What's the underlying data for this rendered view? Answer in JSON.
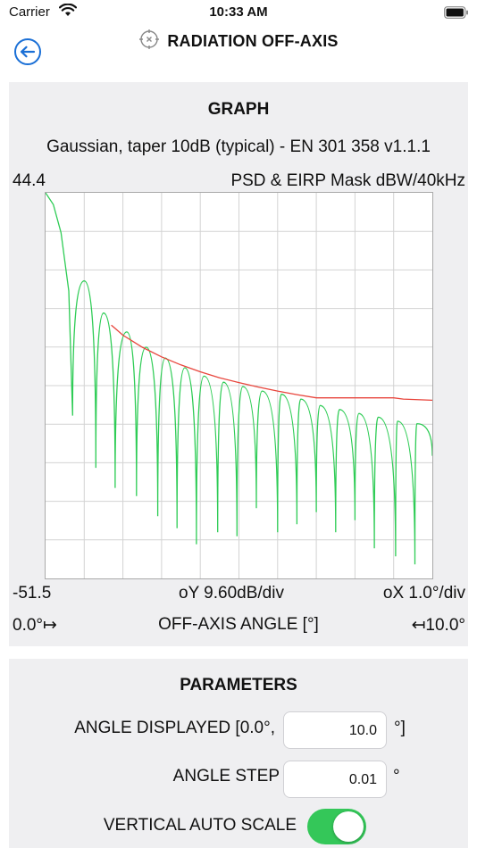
{
  "status_bar": {
    "carrier": "Carrier",
    "time": "10:33 AM"
  },
  "nav": {
    "title": "RADIATION OFF-AXIS",
    "back_icon": "arrow-left-icon",
    "title_icon": "crosshair-icon"
  },
  "graph": {
    "heading": "GRAPH",
    "subtitle": "Gaussian, taper 10dB (typical) - EN 301 358 v1.1.1",
    "y_max": "44.4",
    "y_min": "-51.5",
    "mask_label": "PSD & EIRP Mask dBW/40kHz",
    "oy_label": "oY 9.60dB/div",
    "ox_label": "oX 1.0°/div",
    "x_start": "0.0°↦",
    "x_axis_title": "OFF-AXIS ANGLE [°]",
    "x_end": "↤10.0°"
  },
  "chart_data": {
    "type": "line",
    "title": "Gaussian, taper 10dB (typical) - EN 301 358 v1.1.1",
    "xlabel": "OFF-AXIS ANGLE [°]",
    "ylabel": "PSD & EIRP Mask dBW/40kHz",
    "xlim": [
      0,
      10
    ],
    "ylim": [
      -51.5,
      44.4
    ],
    "grid": true,
    "colors": {
      "pattern": "#2ecc55",
      "mask": "#e8453c"
    },
    "series": [
      {
        "x": [
          1.7,
          2.0,
          2.5,
          3.0,
          3.5,
          4.0,
          4.5,
          5.0,
          5.5,
          6.0,
          6.5,
          7.0,
          8.0,
          9.0,
          9.25,
          10.0
        ],
        "values": [
          11.5,
          9.0,
          6.0,
          3.6,
          1.6,
          -0.1,
          -1.6,
          -2.8,
          -3.9,
          -4.9,
          -5.8,
          -6.6,
          -6.6,
          -6.6,
          -6.9,
          -7.2
        ]
      },
      {
        "main_lobe": {
          "x": [
            0.0,
            0.2,
            0.4,
            0.6,
            0.7
          ],
          "values": [
            44.4,
            41.5,
            34.5,
            20.0,
            -11.0
          ]
        },
        "sidelobe_peaks": {
          "x": [
            1.0,
            1.5,
            2.1,
            2.6,
            3.1,
            3.6,
            4.1,
            4.6,
            5.1,
            5.6,
            6.1,
            6.6,
            7.1,
            7.6,
            8.1,
            8.6,
            9.1,
            9.6
          ],
          "values": [
            22.5,
            14.5,
            9.8,
            6.0,
            3.3,
            0.9,
            -1.2,
            -2.7,
            -3.8,
            -4.9,
            -5.7,
            -6.9,
            -8.5,
            -9.5,
            -10.5,
            -11.4,
            -12.4,
            -13.0
          ]
        },
        "null_levels": {
          "x": [
            0.7,
            1.3,
            1.8,
            2.35,
            2.9,
            3.4,
            3.9,
            4.45,
            4.95,
            5.45,
            6.0,
            6.5,
            7.0,
            7.5,
            8.0,
            8.5,
            9.05,
            9.55
          ],
          "values": [
            -11.0,
            -24.0,
            -29.0,
            -31.0,
            -36.0,
            -39.0,
            -43.0,
            -40.0,
            -41.0,
            -34.0,
            -40.0,
            -38.0,
            -35.0,
            -40.0,
            -37.0,
            -44.0,
            -46.0,
            -48.0
          ]
        }
      }
    ]
  },
  "parameters": {
    "heading": "PARAMETERS",
    "angle_displayed_label": "ANGLE DISPLAYED [0.0°,",
    "angle_displayed_value": "10.0",
    "angle_displayed_unit": "°]",
    "angle_step_label": "ANGLE STEP",
    "angle_step_value": "0.01",
    "angle_step_unit": "°",
    "auto_scale_label": "VERTICAL AUTO SCALE",
    "auto_scale_on": true
  }
}
